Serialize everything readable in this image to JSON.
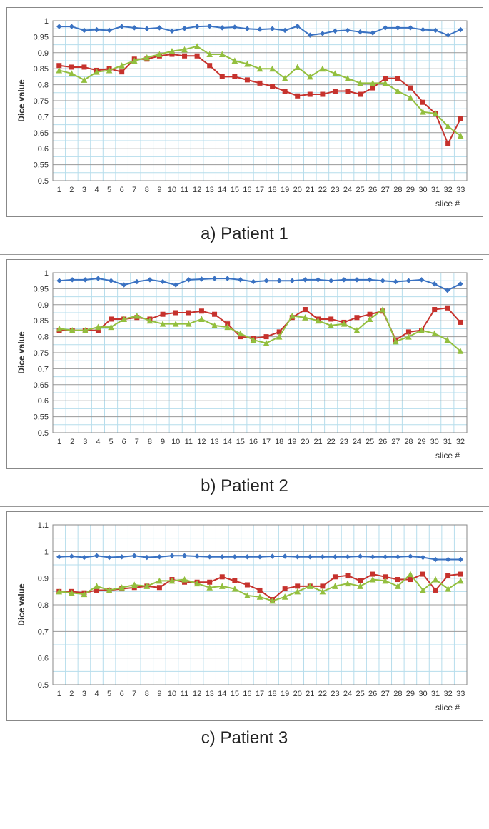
{
  "page_bg": "#ffffff",
  "border_color": "#888888",
  "charts": [
    {
      "id": "chart-a",
      "caption": "a) Patient 1",
      "ylabel": "Dice value",
      "xlabel": "slice #",
      "ylim": [
        0.5,
        1.0
      ],
      "ytick_step": 0.05,
      "xticks": [
        1,
        2,
        3,
        4,
        5,
        6,
        7,
        8,
        9,
        10,
        11,
        12,
        13,
        14,
        15,
        16,
        17,
        18,
        19,
        20,
        21,
        22,
        23,
        24,
        25,
        26,
        27,
        28,
        29,
        30,
        31,
        32,
        33
      ],
      "grid_major_x_color": "#b6ddec",
      "grid_major_y_color": "#999999",
      "grid_minor_y_color": "#b6ddec",
      "background_color": "#ffffff",
      "plot_border_color": "#888888",
      "ylabel_fontsize": 12,
      "tick_fontsize": 11,
      "caption_fontsize": 24,
      "series": [
        {
          "name": "blue",
          "color": "#3a72c2",
          "marker": "diamond",
          "marker_size": 6,
          "line_width": 2,
          "values": [
            0.982,
            0.982,
            0.97,
            0.972,
            0.97,
            0.982,
            0.978,
            0.975,
            0.978,
            0.968,
            0.976,
            0.982,
            0.983,
            0.978,
            0.98,
            0.975,
            0.973,
            0.975,
            0.97,
            0.983,
            0.955,
            0.96,
            0.968,
            0.97,
            0.965,
            0.962,
            0.978,
            0.978,
            0.978,
            0.972,
            0.97,
            0.955,
            0.972
          ]
        },
        {
          "name": "red",
          "color": "#c6322d",
          "marker": "square",
          "marker_size": 6,
          "line_width": 2,
          "values": [
            0.86,
            0.855,
            0.855,
            0.845,
            0.85,
            0.84,
            0.88,
            0.88,
            0.89,
            0.895,
            0.89,
            0.89,
            0.86,
            0.825,
            0.825,
            0.815,
            0.805,
            0.795,
            0.78,
            0.765,
            0.77,
            0.77,
            0.78,
            0.78,
            0.77,
            0.79,
            0.82,
            0.82,
            0.79,
            0.745,
            0.71,
            0.615,
            0.695
          ]
        },
        {
          "name": "green",
          "color": "#93bf3f",
          "marker": "triangle",
          "marker_size": 7,
          "line_width": 2,
          "values": [
            0.845,
            0.835,
            0.815,
            0.84,
            0.845,
            0.86,
            0.875,
            0.885,
            0.895,
            0.905,
            0.91,
            0.92,
            0.895,
            0.895,
            0.875,
            0.865,
            0.85,
            0.85,
            0.82,
            0.855,
            0.825,
            0.85,
            0.835,
            0.82,
            0.805,
            0.805,
            0.805,
            0.78,
            0.76,
            0.715,
            0.71,
            0.67,
            0.64
          ]
        }
      ]
    },
    {
      "id": "chart-b",
      "caption": "b) Patient 2",
      "ylabel": "Dice value",
      "xlabel": "slice #",
      "ylim": [
        0.5,
        1.0
      ],
      "ytick_step": 0.05,
      "xticks": [
        1,
        2,
        3,
        4,
        5,
        6,
        7,
        8,
        9,
        10,
        11,
        12,
        13,
        14,
        15,
        16,
        17,
        18,
        19,
        20,
        21,
        22,
        23,
        24,
        25,
        26,
        27,
        28,
        29,
        30,
        31,
        32
      ],
      "grid_major_x_color": "#b6ddec",
      "grid_major_y_color": "#999999",
      "grid_minor_y_color": "#b6ddec",
      "background_color": "#ffffff",
      "plot_border_color": "#888888",
      "ylabel_fontsize": 12,
      "tick_fontsize": 11,
      "caption_fontsize": 24,
      "series": [
        {
          "name": "blue",
          "color": "#3a72c2",
          "marker": "diamond",
          "marker_size": 6,
          "line_width": 2,
          "values": [
            0.975,
            0.978,
            0.978,
            0.982,
            0.975,
            0.962,
            0.972,
            0.978,
            0.972,
            0.962,
            0.978,
            0.98,
            0.982,
            0.982,
            0.978,
            0.972,
            0.975,
            0.975,
            0.975,
            0.978,
            0.978,
            0.975,
            0.978,
            0.978,
            0.978,
            0.975,
            0.972,
            0.975,
            0.978,
            0.965,
            0.945,
            0.965
          ]
        },
        {
          "name": "red",
          "color": "#c6322d",
          "marker": "square",
          "marker_size": 6,
          "line_width": 2,
          "values": [
            0.82,
            0.82,
            0.82,
            0.82,
            0.855,
            0.855,
            0.86,
            0.855,
            0.87,
            0.875,
            0.875,
            0.88,
            0.87,
            0.84,
            0.8,
            0.795,
            0.8,
            0.815,
            0.86,
            0.885,
            0.855,
            0.855,
            0.845,
            0.86,
            0.87,
            0.88,
            0.79,
            0.815,
            0.82,
            0.885,
            0.89,
            0.845
          ]
        },
        {
          "name": "green",
          "color": "#93bf3f",
          "marker": "triangle",
          "marker_size": 7,
          "line_width": 2,
          "values": [
            0.825,
            0.82,
            0.82,
            0.83,
            0.83,
            0.855,
            0.865,
            0.85,
            0.84,
            0.84,
            0.84,
            0.855,
            0.835,
            0.83,
            0.81,
            0.79,
            0.78,
            0.8,
            0.865,
            0.86,
            0.85,
            0.835,
            0.84,
            0.82,
            0.855,
            0.885,
            0.785,
            0.8,
            0.82,
            0.81,
            0.79,
            0.755
          ]
        }
      ]
    },
    {
      "id": "chart-c",
      "caption": "c) Patient 3",
      "ylabel": "Dice value",
      "xlabel": "slice #",
      "ylim": [
        0.5,
        1.1
      ],
      "ytick_step": 0.1,
      "xticks": [
        1,
        2,
        3,
        4,
        5,
        6,
        7,
        8,
        9,
        10,
        11,
        12,
        13,
        14,
        15,
        16,
        17,
        18,
        19,
        20,
        21,
        22,
        23,
        24,
        25,
        26,
        27,
        28,
        29,
        30,
        31,
        32,
        33
      ],
      "grid_major_x_color": "#b6ddec",
      "grid_major_y_color": "#999999",
      "grid_minor_y_color": "#b6ddec",
      "background_color": "#ffffff",
      "plot_border_color": "#888888",
      "ylabel_fontsize": 12,
      "tick_fontsize": 11,
      "caption_fontsize": 24,
      "series": [
        {
          "name": "blue",
          "color": "#3a72c2",
          "marker": "diamond",
          "marker_size": 6,
          "line_width": 2,
          "values": [
            0.98,
            0.982,
            0.978,
            0.984,
            0.978,
            0.98,
            0.984,
            0.978,
            0.98,
            0.984,
            0.984,
            0.982,
            0.98,
            0.98,
            0.98,
            0.98,
            0.98,
            0.982,
            0.982,
            0.98,
            0.98,
            0.98,
            0.98,
            0.98,
            0.982,
            0.98,
            0.98,
            0.98,
            0.982,
            0.978,
            0.97,
            0.97,
            0.97
          ]
        },
        {
          "name": "red",
          "color": "#c6322d",
          "marker": "square",
          "marker_size": 6,
          "line_width": 2,
          "values": [
            0.85,
            0.85,
            0.845,
            0.855,
            0.855,
            0.86,
            0.865,
            0.87,
            0.865,
            0.895,
            0.885,
            0.885,
            0.885,
            0.905,
            0.89,
            0.875,
            0.855,
            0.82,
            0.86,
            0.87,
            0.87,
            0.87,
            0.905,
            0.91,
            0.89,
            0.915,
            0.905,
            0.895,
            0.895,
            0.915,
            0.855,
            0.91,
            0.915
          ]
        },
        {
          "name": "green",
          "color": "#93bf3f",
          "marker": "triangle",
          "marker_size": 7,
          "line_width": 2,
          "values": [
            0.85,
            0.845,
            0.84,
            0.87,
            0.855,
            0.865,
            0.875,
            0.87,
            0.89,
            0.89,
            0.895,
            0.88,
            0.865,
            0.87,
            0.86,
            0.835,
            0.83,
            0.815,
            0.83,
            0.85,
            0.87,
            0.85,
            0.87,
            0.88,
            0.87,
            0.895,
            0.89,
            0.87,
            0.915,
            0.855,
            0.895,
            0.86,
            0.89
          ]
        }
      ]
    }
  ]
}
